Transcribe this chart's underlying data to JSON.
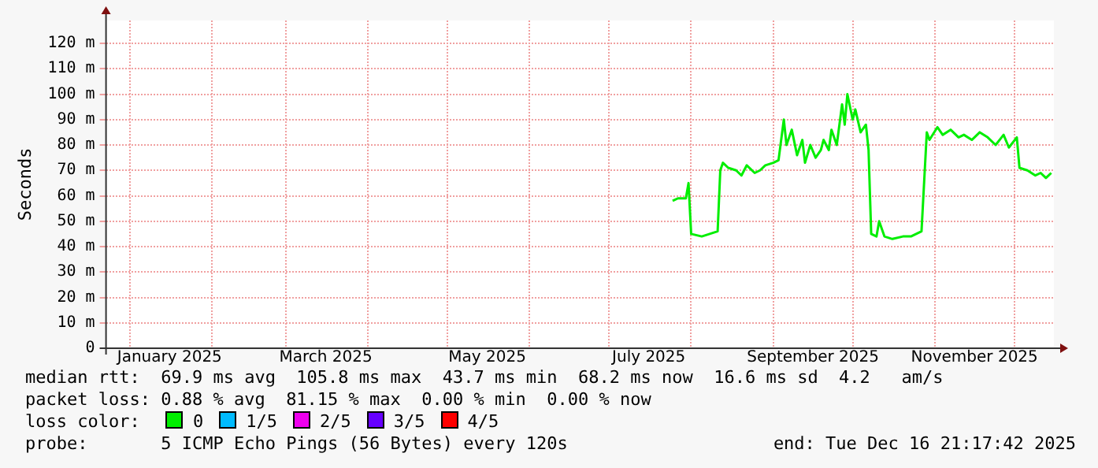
{
  "chart_data": {
    "type": "line",
    "ylabel": "Seconds",
    "legend_title": "loss color:",
    "legend": "bottom",
    "grid": true,
    "marker": "none",
    "line_style": "solid",
    "xlim": [
      "2024-12-23",
      "2025-12-16"
    ],
    "xticks": [
      {
        "value": "2025-01-01",
        "label": null
      },
      {
        "value": "2025-01-16",
        "label": "January 2025"
      },
      {
        "value": "2025-02-01",
        "label": null
      },
      {
        "value": "2025-03-01",
        "label": null
      },
      {
        "value": "2025-03-16",
        "label": "March 2025"
      },
      {
        "value": "2025-04-01",
        "label": null
      },
      {
        "value": "2025-05-01",
        "label": null
      },
      {
        "value": "2025-05-16",
        "label": "May 2025"
      },
      {
        "value": "2025-06-01",
        "label": null
      },
      {
        "value": "2025-07-01",
        "label": null
      },
      {
        "value": "2025-07-16",
        "label": "July 2025"
      },
      {
        "value": "2025-08-01",
        "label": null
      },
      {
        "value": "2025-09-01",
        "label": null
      },
      {
        "value": "2025-09-16",
        "label": "September 2025"
      },
      {
        "value": "2025-10-01",
        "label": null
      },
      {
        "value": "2025-11-01",
        "label": null
      },
      {
        "value": "2025-11-16",
        "label": "November 2025"
      },
      {
        "value": "2025-12-01",
        "label": null
      }
    ],
    "ylim": [
      0,
      129
    ],
    "yticks": [
      0,
      {
        "value": 10,
        "label": "10 m"
      },
      {
        "value": 20,
        "label": "20 m"
      },
      {
        "value": 30,
        "label": "30 m"
      },
      {
        "value": 40,
        "label": "40 m"
      },
      {
        "value": 50,
        "label": "50 m"
      },
      {
        "value": 60,
        "label": "60 m"
      },
      {
        "value": 70,
        "label": "70 m"
      },
      {
        "value": 80,
        "label": "80 m"
      },
      {
        "value": 90,
        "label": "90 m"
      },
      {
        "value": 100,
        "label": "100 m"
      },
      {
        "value": 110,
        "label": "110 m"
      },
      {
        "value": 120,
        "label": "120 m"
      }
    ],
    "x": [
      "2025-07-25",
      "2025-07-27",
      "2025-07-30",
      "2025-07-31",
      "2025-08-01",
      "2025-08-05",
      "2025-08-08",
      "2025-08-11",
      "2025-08-12",
      "2025-08-13",
      "2025-08-15",
      "2025-08-18",
      "2025-08-20",
      "2025-08-22",
      "2025-08-25",
      "2025-08-27",
      "2025-08-29",
      "2025-09-01",
      "2025-09-03",
      "2025-09-05",
      "2025-09-06",
      "2025-09-08",
      "2025-09-10",
      "2025-09-12",
      "2025-09-13",
      "2025-09-15",
      "2025-09-17",
      "2025-09-19",
      "2025-09-20",
      "2025-09-22",
      "2025-09-23",
      "2025-09-25",
      "2025-09-27",
      "2025-09-28",
      "2025-09-29",
      "2025-10-01",
      "2025-10-02",
      "2025-10-04",
      "2025-10-06",
      "2025-10-07",
      "2025-10-08",
      "2025-10-10",
      "2025-10-11",
      "2025-10-13",
      "2025-10-16",
      "2025-10-20",
      "2025-10-23",
      "2025-10-27",
      "2025-10-29",
      "2025-10-30",
      "2025-11-02",
      "2025-11-04",
      "2025-11-07",
      "2025-11-10",
      "2025-11-12",
      "2025-11-15",
      "2025-11-18",
      "2025-11-21",
      "2025-11-24",
      "2025-11-27",
      "2025-11-29",
      "2025-12-02",
      "2025-12-03",
      "2025-12-06",
      "2025-12-09",
      "2025-12-11",
      "2025-12-13",
      "2025-12-15"
    ],
    "series": [
      {
        "name": "0",
        "color": "#00ee00",
        "values": [
          58,
          59,
          59,
          65,
          45,
          44,
          45,
          46,
          70,
          73,
          71,
          70,
          68,
          72,
          69,
          70,
          72,
          73,
          74,
          90,
          80,
          86,
          76,
          82,
          73,
          80,
          75,
          78,
          82,
          78,
          86,
          80,
          96,
          88,
          100,
          90,
          94,
          85,
          88,
          78,
          45,
          44,
          50,
          44,
          43,
          44,
          44,
          46,
          85,
          82,
          87,
          84,
          86,
          83,
          84,
          82,
          85,
          83,
          80,
          84,
          79,
          83,
          71,
          70,
          68,
          69,
          67,
          69
        ]
      },
      {
        "name": "1/5",
        "color": "#00bbff",
        "values": [
          null,
          null,
          null,
          null,
          null,
          null,
          null,
          null,
          null,
          null,
          null,
          null,
          null,
          null,
          null,
          null,
          null,
          null,
          null,
          null,
          null,
          null,
          null,
          null,
          null,
          null,
          null,
          null,
          null,
          null,
          null,
          null,
          null,
          null,
          null,
          null,
          null,
          null,
          null,
          null,
          null,
          null,
          null,
          null,
          null,
          null,
          null,
          null,
          null,
          null,
          null,
          null,
          null,
          null,
          null,
          null,
          null,
          null,
          null,
          null,
          null,
          null,
          null,
          null,
          null,
          null,
          null,
          null
        ]
      },
      {
        "name": "2/5",
        "color": "#ee00ee",
        "values": [
          null,
          null,
          null,
          null,
          null,
          null,
          null,
          null,
          null,
          null,
          null,
          null,
          null,
          null,
          null,
          null,
          null,
          null,
          null,
          null,
          null,
          null,
          null,
          null,
          null,
          null,
          null,
          null,
          null,
          null,
          null,
          null,
          null,
          null,
          null,
          null,
          null,
          null,
          null,
          null,
          null,
          null,
          null,
          null,
          null,
          null,
          null,
          null,
          null,
          null,
          null,
          null,
          null,
          null,
          null,
          null,
          null,
          null,
          null,
          null,
          null,
          null,
          null,
          null,
          null,
          null,
          null,
          null
        ]
      },
      {
        "name": "3/5",
        "color": "#6600ff",
        "values": [
          null,
          null,
          null,
          null,
          null,
          null,
          null,
          null,
          null,
          null,
          null,
          null,
          null,
          null,
          null,
          null,
          null,
          null,
          null,
          null,
          null,
          null,
          null,
          null,
          null,
          null,
          null,
          null,
          null,
          null,
          null,
          null,
          null,
          null,
          null,
          null,
          null,
          null,
          null,
          null,
          null,
          null,
          null,
          null,
          null,
          null,
          null,
          null,
          null,
          null,
          null,
          null,
          null,
          null,
          null,
          null,
          null,
          null,
          null,
          null,
          null,
          null,
          null,
          null,
          null,
          null,
          null,
          null
        ]
      },
      {
        "name": "4/5",
        "color": "#ff0000",
        "values": [
          null,
          null,
          null,
          null,
          null,
          null,
          null,
          null,
          null,
          null,
          null,
          null,
          null,
          null,
          null,
          null,
          null,
          null,
          null,
          null,
          null,
          null,
          null,
          null,
          null,
          null,
          null,
          null,
          null,
          null,
          null,
          null,
          null,
          null,
          null,
          null,
          null,
          null,
          null,
          null,
          null,
          null,
          null,
          null,
          null,
          null,
          null,
          null,
          null,
          null,
          null,
          null,
          null,
          null,
          null,
          null,
          null,
          null,
          null,
          null,
          null,
          null,
          null,
          null,
          null,
          null,
          null,
          null
        ]
      }
    ],
    "annotations": [
      "median rtt:  69.9 ms avg  105.8 ms max  43.7 ms min  68.2 ms now  16.6 ms sd  4.2   am/s",
      "packet loss: 0.88 % avg  81.15 % max  0.00 % min  0.00 % now",
      "probe:       5 ICMP Echo Pings (56 Bytes) every 120s",
      "end: Tue Dec 16 21:17:42 2025"
    ]
  }
}
